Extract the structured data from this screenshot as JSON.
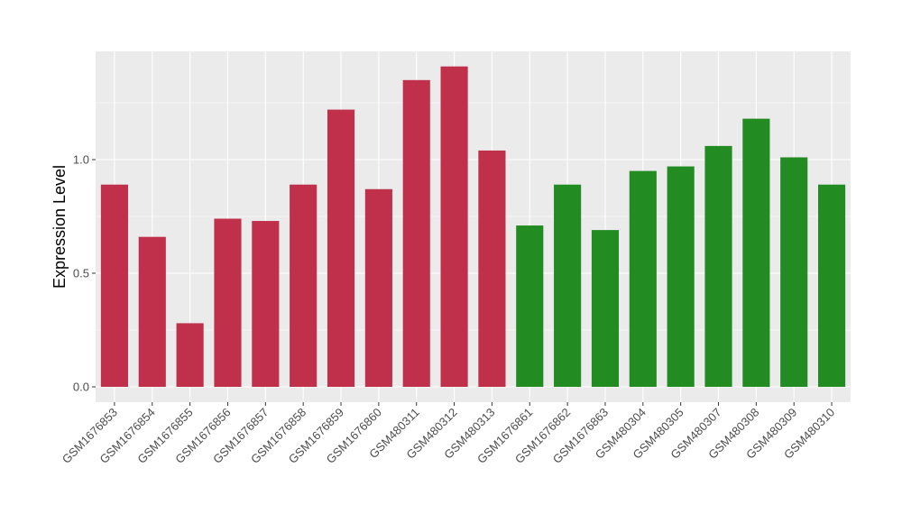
{
  "chart_data": {
    "type": "bar",
    "ylabel": "Expression Level",
    "xlabel": "",
    "ylim": [
      0,
      1.48
    ],
    "yticks": [
      0.0,
      0.5,
      1.0
    ],
    "ytick_labels": [
      "0.0",
      "0.5",
      "1.0"
    ],
    "grid": true,
    "legend": "none",
    "categories": [
      "GSM1676853",
      "GSM1676854",
      "GSM1676855",
      "GSM1676856",
      "GSM1676857",
      "GSM1676858",
      "GSM1676859",
      "GSM1676860",
      "GSM480311",
      "GSM480312",
      "GSM480313",
      "GSM1676861",
      "GSM1676862",
      "GSM1676863",
      "GSM480304",
      "GSM480305",
      "GSM480307",
      "GSM480308",
      "GSM480309",
      "GSM480310"
    ],
    "values": [
      0.89,
      0.66,
      0.28,
      0.74,
      0.73,
      0.89,
      1.22,
      0.87,
      1.35,
      1.41,
      1.04,
      0.71,
      0.89,
      0.69,
      0.95,
      0.97,
      1.06,
      1.18,
      1.01,
      0.89
    ],
    "bar_colors": [
      "#C0304A",
      "#C0304A",
      "#C0304A",
      "#C0304A",
      "#C0304A",
      "#C0304A",
      "#C0304A",
      "#C0304A",
      "#C0304A",
      "#C0304A",
      "#C0304A",
      "#228B22",
      "#228B22",
      "#228B22",
      "#228B22",
      "#228B22",
      "#228B22",
      "#228B22",
      "#228B22",
      "#228B22"
    ],
    "panel_background": "#EBEBEB",
    "grid_color": "#FFFFFF"
  }
}
